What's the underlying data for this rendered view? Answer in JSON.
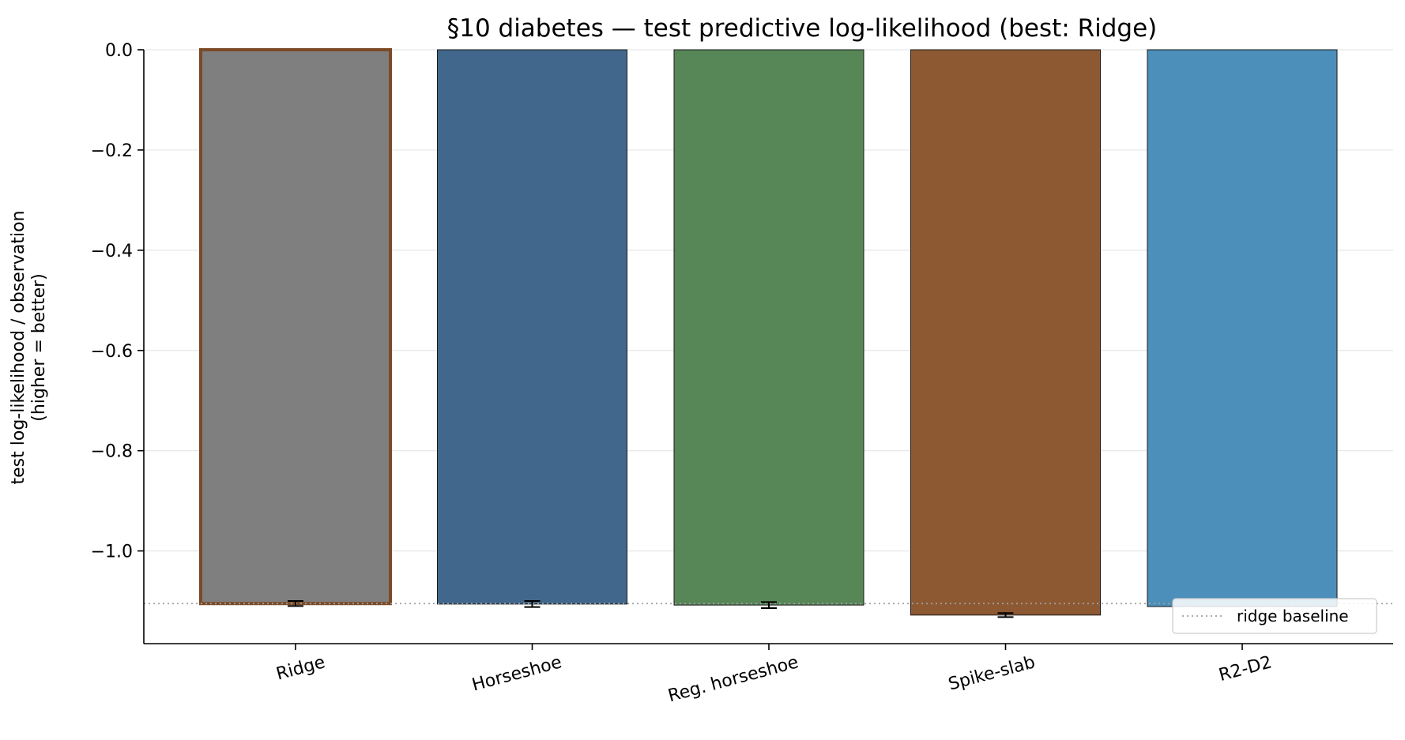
{
  "chart_data": {
    "type": "bar",
    "title": "§10 diabetes — test predictive log-likelihood (best: Ridge)",
    "xlabel": "",
    "ylabel": [
      "test log-likelihood / observation",
      "(higher = better)"
    ],
    "categories": [
      "Ridge",
      "Horseshoe",
      "Reg. horseshoe",
      "Spike-slab",
      "R2-D2"
    ],
    "values": [
      -1.105,
      -1.106,
      -1.108,
      -1.128,
      -1.111
    ],
    "errors": [
      0.005,
      0.006,
      0.006,
      0.004,
      0.0
    ],
    "colors": [
      "#7f7f7f",
      "#41688c",
      "#578657",
      "#8d5933",
      "#4c8fba"
    ],
    "highlight": {
      "category": "Ridge",
      "edge_color": "#7b4a26"
    },
    "ylim": [
      -1.185,
      0.0
    ],
    "yticks": [
      0.0,
      -0.2,
      -0.4,
      -0.6,
      -0.8,
      -1.0
    ],
    "ytick_labels": [
      "0.0",
      "−0.2",
      "−0.4",
      "−0.6",
      "−0.8",
      "−1.0"
    ],
    "baseline": {
      "value": -1.105,
      "label": "ridge baseline"
    },
    "grid": "y",
    "legend": {
      "position": "lower-right",
      "entries": [
        "ridge baseline"
      ]
    }
  }
}
